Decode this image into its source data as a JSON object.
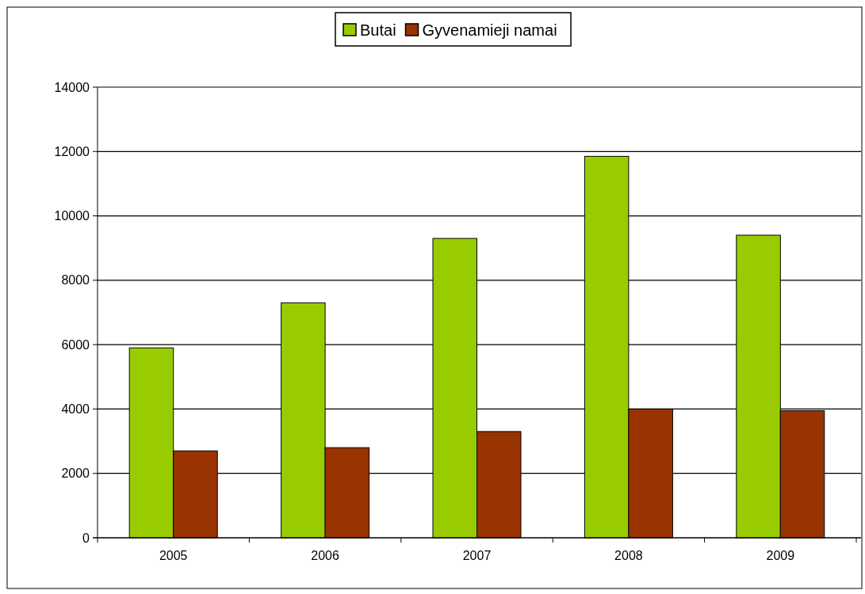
{
  "chart_data": {
    "type": "bar",
    "categories": [
      "2005",
      "2006",
      "2007",
      "2008",
      "2009"
    ],
    "series": [
      {
        "name": "Butai",
        "color": "#99cc00",
        "values": [
          5900,
          7300,
          9300,
          11850,
          9400
        ]
      },
      {
        "name": "Gyvenamieji namai",
        "color": "#993300",
        "values": [
          2700,
          2800,
          3300,
          4000,
          3950
        ]
      }
    ],
    "ylim": [
      0,
      14000
    ],
    "yticks": [
      0,
      2000,
      4000,
      6000,
      8000,
      10000,
      12000,
      14000
    ],
    "grid": "y",
    "legend": "top"
  }
}
